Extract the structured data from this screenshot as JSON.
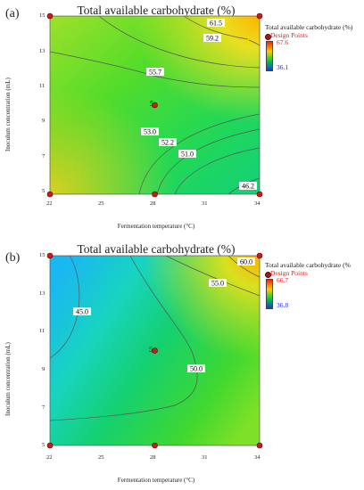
{
  "chart_data": [
    {
      "panel": "(a)",
      "type": "contour",
      "title": "Total available carbohydrate (%)",
      "xlabel": "Fermentation temperature (°C)",
      "ylabel": "Inoculum concentration (mL)",
      "xlim": [
        22,
        34
      ],
      "ylim": [
        5,
        15
      ],
      "xticks": [
        "22",
        "25",
        "28",
        "31",
        "34"
      ],
      "yticks": [
        "5",
        "7",
        "9",
        "11",
        "13",
        "15"
      ],
      "legend": {
        "title": "Total available carbohydrate (%)",
        "design_points_label": "Design Points",
        "max": "67.6",
        "min": "36.1"
      },
      "contour_labels": [
        "61.5",
        "59.2",
        "55.7",
        "53.0",
        "52.2",
        "51.0",
        "46.2"
      ],
      "center_point_label": "5",
      "design_points": [
        [
          22,
          15
        ],
        [
          34,
          15
        ],
        [
          28,
          10
        ],
        [
          22,
          5
        ],
        [
          28,
          5
        ],
        [
          34,
          5
        ]
      ]
    },
    {
      "panel": "(b)",
      "type": "contour",
      "title": "Total available carbohydrate (%)",
      "xlabel": "Fermentation temperature (°C)",
      "ylabel": "Inoculum concentration (mL)",
      "xlim": [
        22,
        34
      ],
      "ylim": [
        5,
        15
      ],
      "xticks": [
        "22",
        "25",
        "28",
        "31",
        "34"
      ],
      "yticks": [
        "5",
        "7",
        "9",
        "11",
        "13",
        "15"
      ],
      "legend": {
        "title": "Total available carbohydrate (%",
        "design_points_label": "Design Points",
        "max": "66.7",
        "min": "36.8"
      },
      "contour_labels": [
        "60.0",
        "55.0",
        "45.0",
        "50.0"
      ],
      "center_point_label": "5",
      "design_points": [
        [
          22,
          15
        ],
        [
          34,
          15
        ],
        [
          28,
          10
        ],
        [
          22,
          5
        ],
        [
          28,
          5
        ],
        [
          34,
          5
        ]
      ]
    }
  ]
}
